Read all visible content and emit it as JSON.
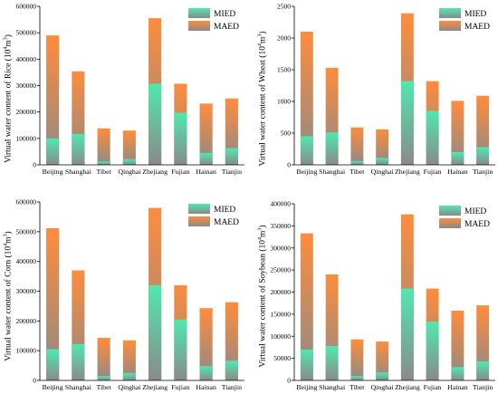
{
  "colors": {
    "mied_top": "#4fe8b0",
    "mied_bottom": "#8a8a8a",
    "maed_top": "#ff8c3c",
    "maed_bottom": "#8a8a8a",
    "axis": "#000000"
  },
  "chart_data": [
    {
      "id": "rice",
      "type": "bar",
      "ylabel_pre": "Virtual water content of Rice (10",
      "ylabel_sup": "4",
      "ylabel_mid": "m",
      "ylabel_sup2": "3",
      "ylabel_post": ")",
      "categories": [
        "Beijing",
        "Shanghai",
        "Tibet",
        "Qinghai",
        "Zhejiang",
        "Fujian",
        "Hainan",
        "Tianjin"
      ],
      "series": [
        {
          "name": "MIED",
          "values": [
            100000,
            117000,
            13000,
            22000,
            307000,
            197000,
            45000,
            63000
          ]
        },
        {
          "name": "MAED",
          "values": [
            490000,
            354000,
            138000,
            130000,
            555000,
            307000,
            232000,
            251000
          ]
        }
      ],
      "ylim": [
        0,
        600000
      ],
      "yticks": [
        0,
        100000,
        200000,
        300000,
        400000,
        500000,
        600000
      ],
      "legend": "top-right"
    },
    {
      "id": "wheat",
      "type": "bar",
      "ylabel_pre": "Virtual water content of Wheat (10",
      "ylabel_sup": "4",
      "ylabel_mid": "m",
      "ylabel_sup2": "3",
      "ylabel_post": ")",
      "categories": [
        "Beijing",
        "Shanghai",
        "Tibet",
        "Qinghai",
        "Zhejiang",
        "Fujian",
        "Hainan",
        "Tianjin"
      ],
      "series": [
        {
          "name": "MIED",
          "values": [
            450,
            510,
            60,
            110,
            1320,
            850,
            200,
            280
          ]
        },
        {
          "name": "MAED",
          "values": [
            2100,
            1530,
            590,
            560,
            2390,
            1320,
            1010,
            1090
          ]
        }
      ],
      "ylim": [
        0,
        2500
      ],
      "yticks": [
        0,
        500,
        1000,
        1500,
        2000,
        2500
      ],
      "legend": "top-right"
    },
    {
      "id": "corn",
      "type": "bar",
      "ylabel_pre": "Virtual water content of Corn (10",
      "ylabel_sup": "4",
      "ylabel_mid": "m",
      "ylabel_sup2": "3",
      "ylabel_post": ")",
      "categories": [
        "Beijing",
        "Shanghai",
        "Tibet",
        "Qinghai",
        "Zhejiang",
        "Fujian",
        "Hainan",
        "Tianjin"
      ],
      "series": [
        {
          "name": "MIED",
          "values": [
            105000,
            122000,
            15000,
            25000,
            320000,
            205000,
            48000,
            66000
          ]
        },
        {
          "name": "MAED",
          "values": [
            512000,
            370000,
            143000,
            135000,
            580000,
            320000,
            243000,
            263000
          ]
        }
      ],
      "ylim": [
        0,
        600000
      ],
      "yticks": [
        0,
        100000,
        200000,
        300000,
        400000,
        500000,
        600000
      ],
      "legend": "top-right"
    },
    {
      "id": "soybean",
      "type": "bar",
      "ylabel_pre": "Virtual water content of Soybean (10",
      "ylabel_sup": "4",
      "ylabel_mid": "m",
      "ylabel_sup2": "3",
      "ylabel_post": ")",
      "categories": [
        "Beijing",
        "Shanghai",
        "Tibet",
        "Qinghai",
        "Zhejiang",
        "Fujian",
        "Hainan",
        "Tianjin"
      ],
      "series": [
        {
          "name": "MIED",
          "values": [
            70000,
            78000,
            10000,
            18000,
            208000,
            133000,
            30000,
            43000
          ]
        },
        {
          "name": "MAED",
          "values": [
            333000,
            240000,
            93000,
            88000,
            376000,
            208000,
            158000,
            170000
          ]
        }
      ],
      "ylim": [
        0,
        400000
      ],
      "yticks": [
        0,
        50000,
        100000,
        150000,
        200000,
        250000,
        300000,
        350000,
        400000
      ],
      "legend": "top-right"
    }
  ]
}
